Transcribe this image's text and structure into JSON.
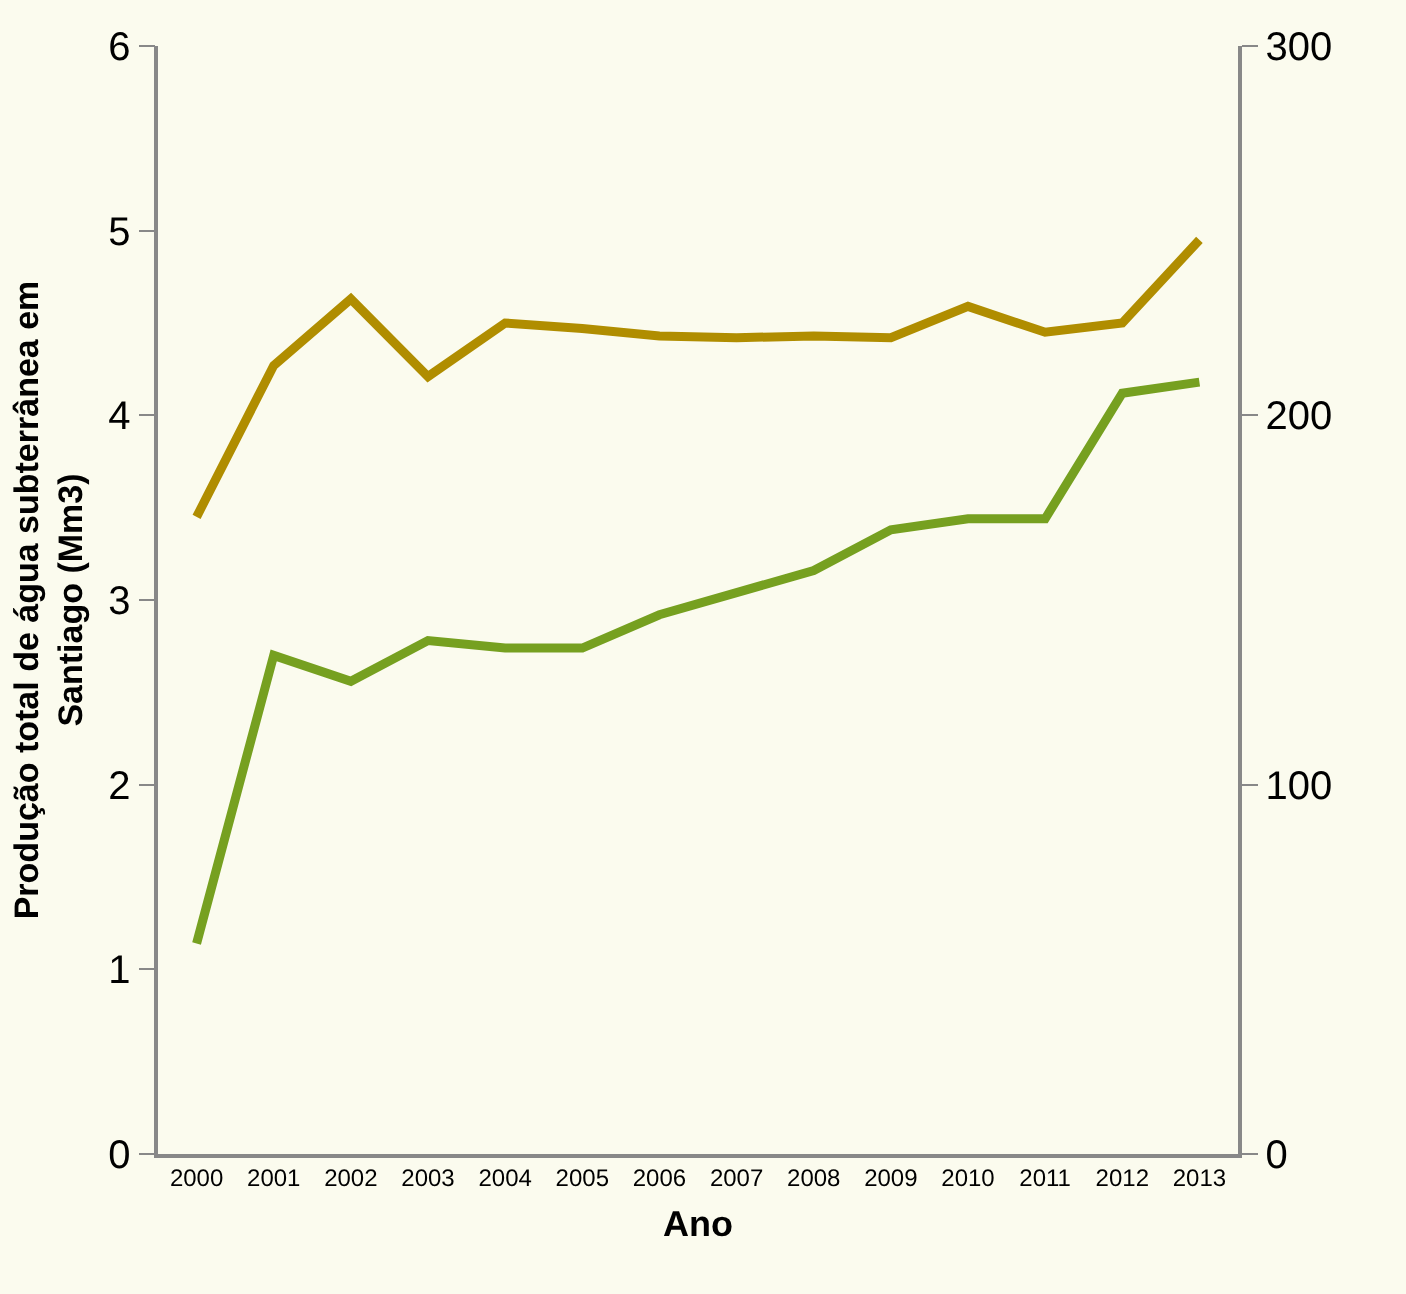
{
  "chart_data": {
    "type": "line",
    "xlabel": "Ano",
    "ylabel": "Produção total de água subterrânea em Santiago (Mm3)",
    "categories": [
      "2000",
      "2001",
      "2002",
      "2003",
      "2004",
      "2005",
      "2006",
      "2007",
      "2008",
      "2009",
      "2010",
      "2011",
      "2012",
      "2013"
    ],
    "series": [
      {
        "color": "#b08d00",
        "values": [
          3.45,
          4.27,
          4.63,
          4.21,
          4.5,
          4.47,
          4.43,
          4.42,
          4.43,
          4.42,
          4.59,
          4.45,
          4.5,
          4.95
        ]
      },
      {
        "color": "#76a020",
        "axis": "y2",
        "values": [
          57,
          135,
          128,
          139,
          137,
          137,
          146,
          152,
          158,
          169,
          172,
          172,
          206,
          209
        ]
      }
    ],
    "ylim": [
      0,
      6
    ],
    "yticks": [
      0,
      1,
      2,
      3,
      4,
      5,
      6
    ],
    "y2lim": [
      0,
      300
    ],
    "y2ticks": [
      0,
      100,
      200,
      300
    ],
    "grid": false,
    "marker": "none",
    "line_style": "solid"
  }
}
